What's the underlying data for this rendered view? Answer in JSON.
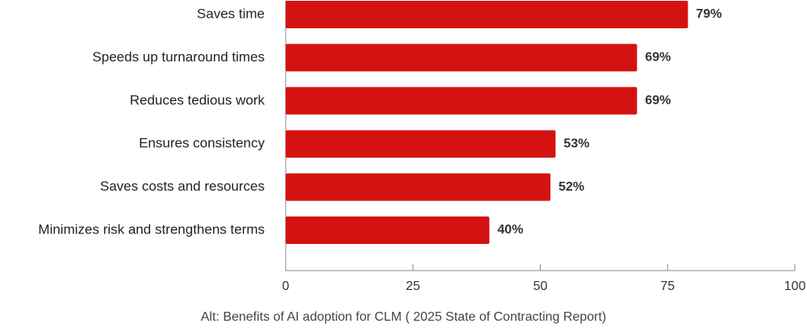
{
  "chart_data": {
    "type": "bar",
    "orientation": "horizontal",
    "categories": [
      "Saves time",
      "Speeds up turnaround times",
      "Reduces tedious work",
      "Ensures consistency",
      "Saves costs and resources",
      "Minimizes risk and strengthens terms"
    ],
    "values": [
      79,
      69,
      69,
      53,
      52,
      40
    ],
    "value_labels": [
      "79%",
      "69%",
      "69%",
      "53%",
      "52%",
      "40%"
    ],
    "color": "#d51212",
    "xlim": [
      0,
      100
    ],
    "xticks": [
      0,
      25,
      50,
      75,
      100
    ],
    "caption": "Alt: Benefits of AI adoption for CLM ( 2025 State of Contracting Report)"
  }
}
